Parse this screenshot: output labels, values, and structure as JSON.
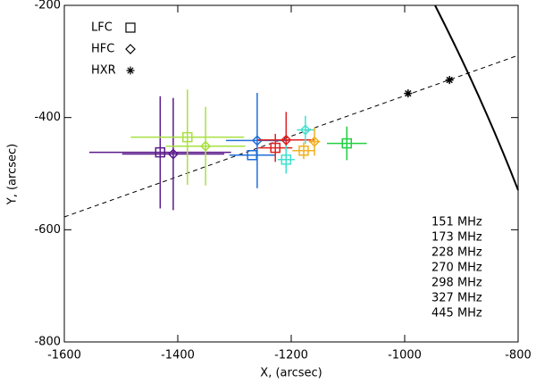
{
  "chart_data": {
    "type": "scatter",
    "xlabel": "X, (arcsec)",
    "ylabel": "Y, (arcsec)",
    "xlim": [
      -1600,
      -800
    ],
    "ylim": [
      -800,
      -200
    ],
    "xticks": [
      -1600,
      -1400,
      -1200,
      -1000,
      -800
    ],
    "yticks": [
      -800,
      -600,
      -400,
      -200
    ],
    "legend": [
      {
        "name": "LFC",
        "marker": "square"
      },
      {
        "name": "HFC",
        "marker": "diamond"
      },
      {
        "name": "HXR",
        "marker": "asterisk"
      }
    ],
    "series": [
      {
        "name": "151 MHz",
        "color": "#5a1a8a",
        "LFC": {
          "x": -1431,
          "y": -462,
          "xerr": 125,
          "yerr": 100
        },
        "HFC": {
          "x": -1408,
          "y": -465,
          "xerr": 90,
          "yerr": 100
        }
      },
      {
        "name": "173 MHz",
        "color": "#a8e040",
        "LFC": {
          "x": -1383,
          "y": -435,
          "xerr": 100,
          "yerr": 85
        },
        "HFC": {
          "x": -1351,
          "y": -451,
          "xerr": 70,
          "yerr": 70
        }
      },
      {
        "name": "228 MHz",
        "color": "#1f6fd8",
        "LFC": {
          "x": -1269,
          "y": -467,
          "xerr": 40,
          "yerr": 0
        },
        "HFC": {
          "x": -1260,
          "y": -441,
          "xerr": 55,
          "yerr": 85
        }
      },
      {
        "name": "270 MHz",
        "color": "#e02020",
        "LFC": {
          "x": -1228,
          "y": -454,
          "xerr": 30,
          "yerr": 25
        },
        "HFC": {
          "x": -1209,
          "y": -440,
          "xerr": 50,
          "yerr": 50
        }
      },
      {
        "name": "298 MHz",
        "color": "#40e0d0",
        "LFC": {
          "x": -1209,
          "y": -475,
          "xerr": 15,
          "yerr": 25
        },
        "HFC": {
          "x": -1175,
          "y": -422,
          "xerr": 15,
          "yerr": 25
        }
      },
      {
        "name": "327 MHz",
        "color": "#f0b020",
        "LFC": {
          "x": -1178,
          "y": -459,
          "xerr": 20,
          "yerr": 15
        },
        "HFC": {
          "x": -1159,
          "y": -443,
          "xerr": 10,
          "yerr": 25
        }
      },
      {
        "name": "445 MHz",
        "color": "#20d040",
        "LFC": {
          "x": -1102,
          "y": -446,
          "xerr": 35,
          "yerr": 30
        }
      }
    ],
    "hxr": {
      "x": [
        -994,
        -921
      ],
      "y": [
        -357,
        -333
      ]
    }
  }
}
